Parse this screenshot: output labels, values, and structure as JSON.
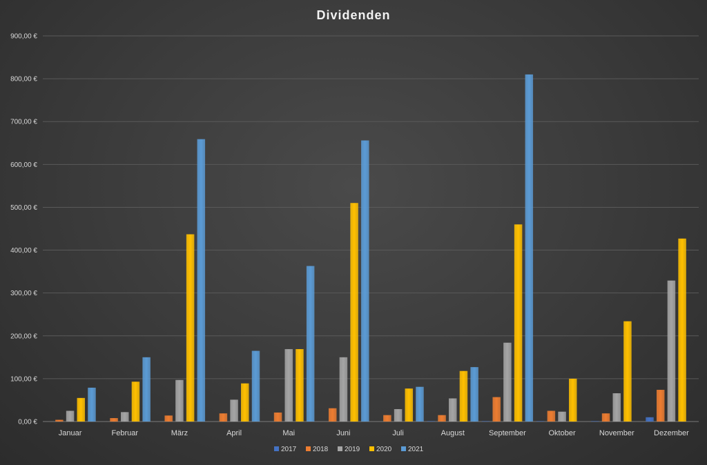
{
  "chart_data": {
    "type": "bar",
    "title": "Dividenden",
    "xlabel": "",
    "ylabel": "",
    "ylim": [
      0,
      900
    ],
    "yticks": [
      0,
      100,
      200,
      300,
      400,
      500,
      600,
      700,
      800,
      900
    ],
    "ytick_labels": [
      "0,00 €",
      "100,00 €",
      "200,00 €",
      "300,00 €",
      "400,00 €",
      "500,00 €",
      "600,00 €",
      "700,00 €",
      "800,00 €",
      "900,00 €"
    ],
    "grid": true,
    "legend_position": "bottom",
    "categories": [
      "Januar",
      "Februar",
      "März",
      "April",
      "Mai",
      "Juni",
      "Juli",
      "August",
      "September",
      "Oktober",
      "November",
      "Dezember"
    ],
    "series": [
      {
        "name": "2017",
        "color": "#4472c4",
        "values": [
          0,
          0,
          0,
          0,
          0,
          0,
          0,
          1,
          1,
          1,
          1,
          10
        ]
      },
      {
        "name": "2018",
        "color": "#ed7d31",
        "values": [
          4,
          8,
          14,
          19,
          21,
          31,
          15,
          15,
          57,
          25,
          19,
          74
        ]
      },
      {
        "name": "2019",
        "color": "#a5a5a5",
        "values": [
          25,
          22,
          97,
          51,
          169,
          150,
          29,
          54,
          184,
          23,
          66,
          329
        ]
      },
      {
        "name": "2020",
        "color": "#ffc000",
        "values": [
          55,
          93,
          437,
          89,
          169,
          510,
          77,
          118,
          460,
          100,
          234,
          427
        ]
      },
      {
        "name": "2021",
        "color": "#5b9bd5",
        "values": [
          79,
          150,
          659,
          165,
          363,
          656,
          81,
          127,
          810,
          0,
          0,
          0
        ]
      }
    ]
  }
}
